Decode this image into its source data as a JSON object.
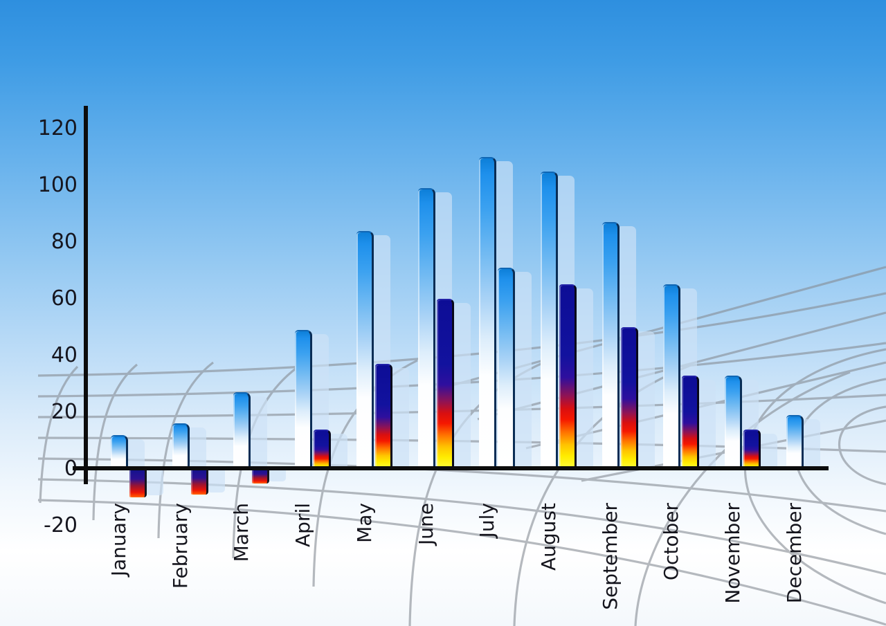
{
  "chart_data": {
    "type": "bar",
    "title": "",
    "xlabel": "",
    "ylabel": "",
    "categories": [
      "January",
      "February",
      "March",
      "April",
      "May",
      "June",
      "July",
      "August",
      "September",
      "October",
      "November",
      "December"
    ],
    "series": [
      {
        "name": "primary-blue-bars",
        "values": [
          12,
          16,
          27,
          49,
          84,
          99,
          110,
          105,
          87,
          65,
          33,
          19
        ]
      },
      {
        "name": "secondary-bars",
        "values": [
          -10,
          -9,
          -5,
          14,
          37,
          60,
          71,
          65,
          50,
          33,
          14,
          null
        ]
      }
    ],
    "secondary_bar_styles": [
      "rainbow",
      "rainbow",
      "rainbow",
      "rainbow",
      "rainbow",
      "rainbow",
      "blue",
      "rainbow",
      "rainbow",
      "rainbow",
      "rainbow",
      "none"
    ],
    "yticks": [
      "120",
      "100",
      "80",
      "60",
      "40",
      "20",
      "0",
      "-20"
    ],
    "ytick_values": [
      120,
      100,
      80,
      60,
      40,
      20,
      0,
      -20
    ],
    "ylim": [
      -20,
      120
    ],
    "legend": "none",
    "grid": "decorative-perspective-floor",
    "notes": "3D-style bar chart on sky-gradient background; each bar casts a translucent light-blue offset copy; secondary bars have navy-red-yellow gradient (negative in Jan-Mar), July secondary bar is blue, December has no secondary bar"
  },
  "colors": {
    "sky_top": "#2e8fdf",
    "sky_bottom": "#ffffff",
    "bar_blue_top": "#1590ee",
    "rainbow_top": "#0d0d96",
    "rainbow_mid": "#f51800",
    "rainbow_bottom": "#ffff3d",
    "shadow_bar": "#cde1f6",
    "axis": "#0c0c0c",
    "grid_line": "#868c94",
    "label_text": "#15151d"
  }
}
